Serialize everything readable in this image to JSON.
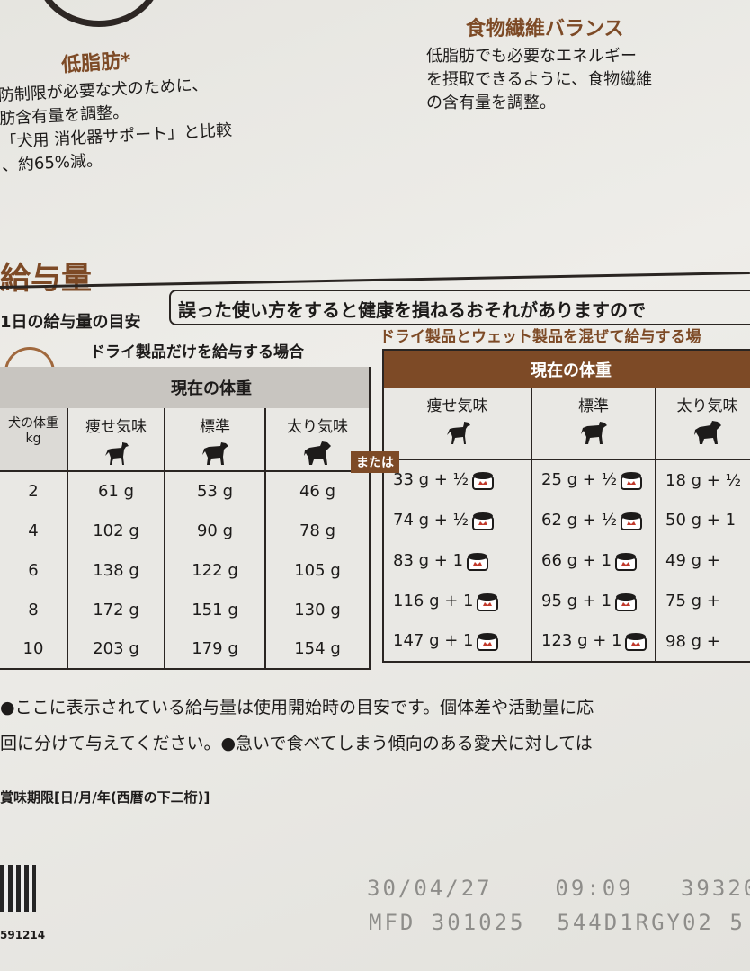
{
  "features": {
    "low_fat": {
      "title": "低脂肪*",
      "lines": [
        "防制限が必要な犬のために、",
        "肪含有量を調整。",
        "「犬用 消化器サポート」と比較",
        "、約65%減。"
      ]
    },
    "fiber": {
      "title": "食物繊維バランス",
      "lines": [
        "低脂肪でも必要なエネルギー",
        "を摂取できるように、食物繊維",
        "の含有量を調整。"
      ]
    }
  },
  "section_title": "給与量",
  "daily_guide_label": "1日の給与量の目安",
  "warning": "誤った使い方をすると健康を損ねるおそれがありますので",
  "icon_24h": "24H",
  "dry_only": {
    "title": "ドライ製品だけを給与する場合",
    "band": "現在の体重",
    "weight_header": "犬の体重",
    "weight_unit": "kg",
    "columns": [
      "痩せ気味",
      "標準",
      "太り気味"
    ],
    "rows": [
      {
        "kg": "2",
        "values": [
          "61 g",
          "53 g",
          "46 g"
        ]
      },
      {
        "kg": "4",
        "values": [
          "102 g",
          "90 g",
          "78 g"
        ]
      },
      {
        "kg": "6",
        "values": [
          "138 g",
          "122 g",
          "105 g"
        ]
      },
      {
        "kg": "8",
        "values": [
          "172 g",
          "151 g",
          "130 g"
        ]
      },
      {
        "kg": "10",
        "values": [
          "203 g",
          "179 g",
          "154 g"
        ]
      }
    ]
  },
  "or_badge": "または",
  "mixed": {
    "title": "ドライ製品とウェット製品を混ぜて給与する場",
    "band": "現在の体重",
    "columns": [
      "痩せ気味",
      "標準",
      "太り気味"
    ],
    "rows": [
      [
        "33 g + ½",
        "25 g + ½",
        "18 g + ½"
      ],
      [
        "74 g + ½",
        "62 g + ½",
        "50 g + 1"
      ],
      [
        "83 g +  1",
        "66 g +  1",
        "49 g +"
      ],
      [
        "116 g +  1",
        "95 g +  1",
        "75 g +"
      ],
      [
        "147 g +  1",
        "123 g +  1",
        "98 g +"
      ]
    ]
  },
  "notes": [
    "●ここに表示されている給与量は使用開始時の目安です。個体差や活動量に応",
    "回に分けて与えてください。●急いで食べてしまう傾向のある愛犬に対しては"
  ],
  "best_before_label": "賞味期限[日/月/年(西暦の下二桁)]",
  "code_number": "591214",
  "print": {
    "line1": "30/04/27    09:09   39320",
    "line2": "MFD 301025  544D1RGY02 5"
  },
  "colors": {
    "brand_brown": "#7d4a26",
    "band_gray": "#c8c5c0"
  }
}
